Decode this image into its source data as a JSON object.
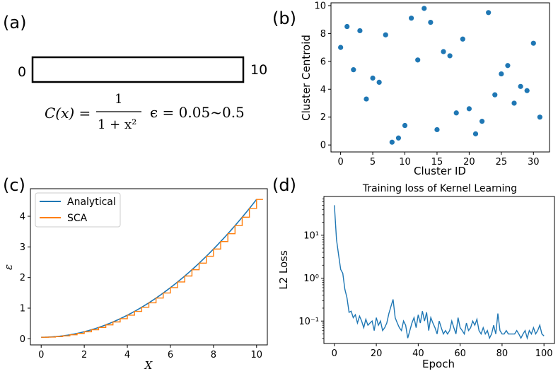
{
  "panel_labels": [
    "(a)",
    "(b)",
    "(c)",
    "(d)"
  ],
  "schematic": {
    "left_label": "0",
    "right_label": "10",
    "formula": {
      "lhs": "C(x) =",
      "num": "1",
      "den": "1 + x²",
      "eps": "ϵ = 0.05~0.5"
    }
  },
  "colors": {
    "blue": "#1f77b4",
    "orange": "#ff7f0e",
    "axes": "#000000"
  },
  "chart_data": [
    {
      "id": "b",
      "type": "scatter",
      "title": "",
      "xlabel": "Cluster ID",
      "ylabel": "Cluster Centroid",
      "xlim": [
        -1.5,
        32.5
      ],
      "ylim": [
        -0.5,
        10.2
      ],
      "xticks": [
        0,
        5,
        10,
        15,
        20,
        25,
        30
      ],
      "yticks": [
        0,
        2,
        4,
        6,
        8,
        10
      ],
      "x": [
        0,
        1,
        2,
        3,
        4,
        5,
        6,
        7,
        8,
        9,
        10,
        11,
        12,
        13,
        14,
        15,
        16,
        17,
        18,
        19,
        20,
        21,
        22,
        23,
        24,
        25,
        26,
        27,
        28,
        29,
        30,
        31
      ],
      "y": [
        7.0,
        8.5,
        5.4,
        8.2,
        3.3,
        4.8,
        4.5,
        7.9,
        0.2,
        0.5,
        1.4,
        9.1,
        6.1,
        9.8,
        8.8,
        1.1,
        6.7,
        6.4,
        2.3,
        7.6,
        2.6,
        0.8,
        1.7,
        9.5,
        3.6,
        5.1,
        5.7,
        3.0,
        4.2,
        3.9,
        7.3,
        2.0
      ]
    },
    {
      "id": "c",
      "type": "line",
      "title": "",
      "xlabel": "X",
      "ylabel": "ε",
      "xlim": [
        -0.5,
        10.5
      ],
      "ylim": [
        -0.2,
        4.9
      ],
      "xticks": [
        0,
        2,
        4,
        6,
        8,
        10
      ],
      "yticks": [
        0,
        1,
        2,
        3,
        4
      ],
      "legend": {
        "position": "top-left",
        "entries": [
          "Analytical",
          "SCA"
        ]
      },
      "series": [
        {
          "name": "Analytical",
          "function": "0.05 + 0.045*x^2",
          "x_range": [
            0,
            10.0
          ]
        },
        {
          "name": "SCA",
          "type": "step",
          "x": [
            0,
            0.333,
            0.667,
            1,
            1.333,
            1.667,
            2,
            2.333,
            2.667,
            3,
            3.333,
            3.667,
            4,
            4.333,
            4.667,
            5,
            5.333,
            5.667,
            6,
            6.333,
            6.667,
            7,
            7.333,
            7.667,
            8,
            8.333,
            8.667,
            9,
            9.333,
            9.667,
            10
          ],
          "function": "0.05 + 0.045*x^2"
        }
      ]
    },
    {
      "id": "d",
      "type": "line",
      "title": "Training loss of Kernel Learning",
      "xlabel": "Epoch",
      "ylabel": "L2 Loss",
      "yscale": "log",
      "xlim": [
        -5,
        105
      ],
      "ylim": [
        0.03,
        80
      ],
      "xticks": [
        0,
        20,
        40,
        60,
        80,
        100
      ],
      "yticks": [
        {
          "v": 0.1,
          "label": "10⁻¹"
        },
        {
          "v": 1,
          "label": "10⁰"
        },
        {
          "v": 10,
          "label": "10¹"
        }
      ],
      "series": [
        {
          "name": "L2 Loss",
          "x": [
            0,
            1,
            2,
            3,
            4,
            5,
            6,
            7,
            8,
            9,
            10,
            11,
            12,
            13,
            14,
            15,
            16,
            17,
            18,
            19,
            20,
            21,
            22,
            23,
            24,
            25,
            26,
            27,
            28,
            29,
            30,
            31,
            32,
            33,
            34,
            35,
            36,
            37,
            38,
            39,
            40,
            41,
            42,
            43,
            44,
            45,
            46,
            47,
            48,
            49,
            50,
            51,
            52,
            53,
            54,
            55,
            56,
            57,
            58,
            59,
            60,
            61,
            62,
            63,
            64,
            65,
            66,
            67,
            68,
            69,
            70,
            71,
            72,
            73,
            74,
            75,
            76,
            77,
            78,
            79,
            80,
            81,
            82,
            83,
            84,
            85,
            86,
            87,
            88,
            89,
            90,
            91,
            92,
            93,
            94,
            95,
            96,
            97,
            98,
            99,
            100
          ],
          "y": [
            50,
            8,
            3.5,
            1.6,
            1.3,
            0.55,
            0.35,
            0.16,
            0.17,
            0.12,
            0.14,
            0.09,
            0.13,
            0.1,
            0.07,
            0.11,
            0.08,
            0.09,
            0.1,
            0.06,
            0.12,
            0.08,
            0.1,
            0.06,
            0.07,
            0.09,
            0.15,
            0.22,
            0.32,
            0.12,
            0.09,
            0.07,
            0.06,
            0.1,
            0.08,
            0.04,
            0.06,
            0.09,
            0.12,
            0.07,
            0.14,
            0.09,
            0.17,
            0.1,
            0.16,
            0.06,
            0.12,
            0.09,
            0.07,
            0.05,
            0.1,
            0.07,
            0.05,
            0.06,
            0.05,
            0.06,
            0.1,
            0.07,
            0.05,
            0.12,
            0.07,
            0.06,
            0.05,
            0.09,
            0.06,
            0.07,
            0.1,
            0.08,
            0.11,
            0.06,
            0.05,
            0.07,
            0.05,
            0.06,
            0.04,
            0.05,
            0.08,
            0.05,
            0.15,
            0.06,
            0.05,
            0.05,
            0.06,
            0.05,
            0.05,
            0.05,
            0.05,
            0.06,
            0.05,
            0.04,
            0.05,
            0.06,
            0.04,
            0.06,
            0.05,
            0.07,
            0.05,
            0.06,
            0.08,
            0.05,
            0.045
          ]
        }
      ]
    }
  ]
}
